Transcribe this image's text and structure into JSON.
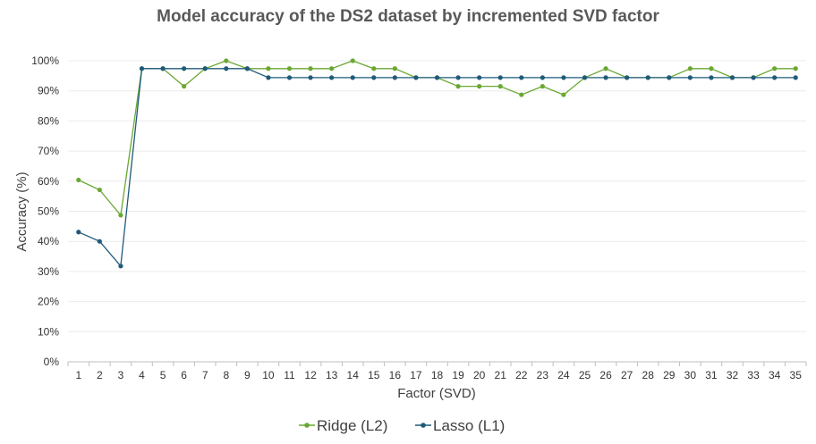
{
  "chart_data": {
    "type": "line",
    "title": "Model accuracy of the DS2 dataset by incremented SVD factor",
    "xlabel": "Factor (SVD)",
    "ylabel": "Accuracy (%)",
    "ylim": [
      0,
      100
    ],
    "yticks": [
      "0%",
      "10%",
      "20%",
      "30%",
      "40%",
      "50%",
      "60%",
      "70%",
      "80%",
      "90%",
      "100%"
    ],
    "grid": true,
    "legend_position": "bottom",
    "categories": [
      "1",
      "2",
      "3",
      "4",
      "5",
      "6",
      "7",
      "8",
      "9",
      "10",
      "11",
      "12",
      "13",
      "14",
      "15",
      "16",
      "17",
      "18",
      "19",
      "20",
      "21",
      "22",
      "23",
      "24",
      "25",
      "26",
      "27",
      "28",
      "29",
      "30",
      "31",
      "32",
      "33",
      "34",
      "35"
    ],
    "series": [
      {
        "name": "Ridge (L2)",
        "color": "#6aa832",
        "values": [
          60.4,
          57.1,
          48.7,
          97.4,
          97.4,
          91.5,
          97.4,
          100,
          97.4,
          97.4,
          97.4,
          97.4,
          97.4,
          100,
          97.4,
          97.4,
          94.4,
          94.4,
          91.5,
          91.5,
          91.5,
          88.7,
          91.5,
          88.7,
          94.4,
          97.4,
          94.4,
          94.4,
          94.4,
          97.4,
          97.4,
          94.4,
          94.4,
          97.4,
          97.4
        ]
      },
      {
        "name": "Lasso (L1)",
        "color": "#1f5a7a",
        "values": [
          43.1,
          40.0,
          31.8,
          97.4,
          97.4,
          97.4,
          97.4,
          97.4,
          97.4,
          94.4,
          94.4,
          94.4,
          94.4,
          94.4,
          94.4,
          94.4,
          94.4,
          94.4,
          94.4,
          94.4,
          94.4,
          94.4,
          94.4,
          94.4,
          94.4,
          94.4,
          94.4,
          94.4,
          94.4,
          94.4,
          94.4,
          94.4,
          94.4,
          94.4,
          94.4
        ]
      }
    ]
  }
}
